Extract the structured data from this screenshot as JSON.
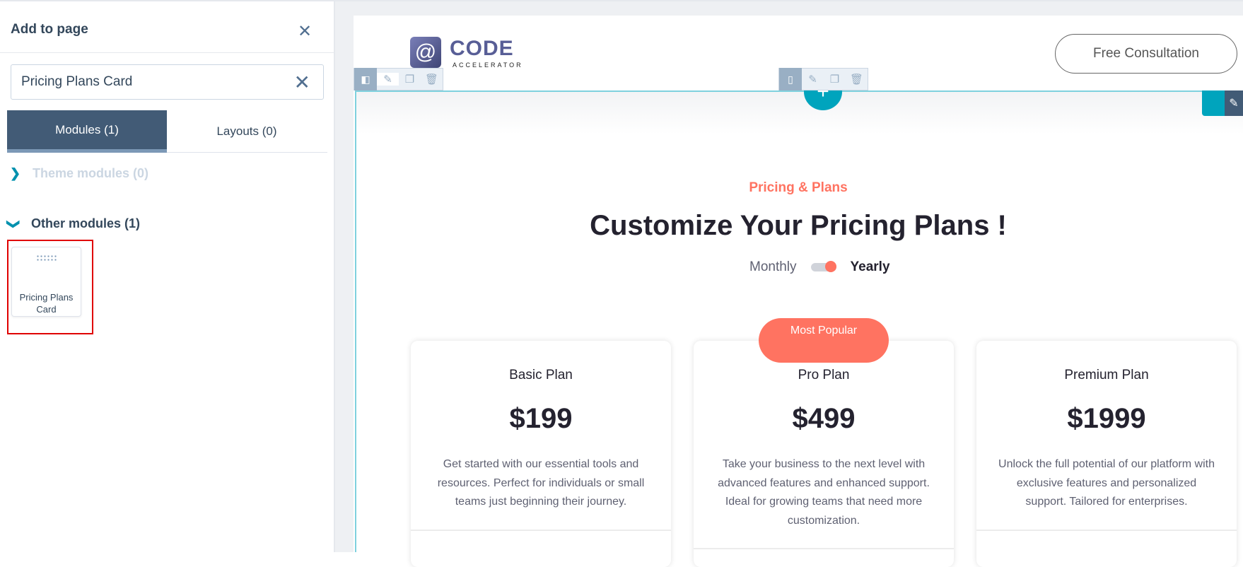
{
  "panel": {
    "title": "Add to page",
    "search_value": "Pricing Plans Card",
    "tabs": [
      {
        "label": "Modules (1)",
        "active": true
      },
      {
        "label": "Layouts (0)",
        "active": false
      }
    ],
    "sections": [
      {
        "label": "Theme modules (0)",
        "expanded": false
      },
      {
        "label": "Other modules (1)",
        "expanded": true
      }
    ],
    "module_card_label": "Pricing Plans Card",
    "highlight_color": "#e00000"
  },
  "preview": {
    "logo": {
      "word": "CODE",
      "sub": "ACCELERATOR"
    },
    "cta_label": "Free Consultation",
    "tagline": "Pricing & Plans",
    "headline": "Customize Your Pricing Plans !",
    "toggle": {
      "left": "Monthly",
      "right": "Yearly",
      "selected": "Yearly"
    },
    "badge": "Most Popular",
    "plans": [
      {
        "name": "Basic Plan",
        "price": "$199",
        "description": "Get started with our essential tools and resources. Perfect for individuals or small teams just beginning their journey."
      },
      {
        "name": "Pro Plan",
        "price": "$499",
        "description": "Take your business to the next level with advanced features and enhanced support. Ideal for growing teams that need more customization."
      },
      {
        "name": "Premium Plan",
        "price": "$1999",
        "description": "Unlock the full potential of our platform with exclusive features and personalized support. Tailored for enterprises."
      }
    ],
    "accent_color": "#ff7361",
    "editor_accent": "#00a4bd"
  }
}
